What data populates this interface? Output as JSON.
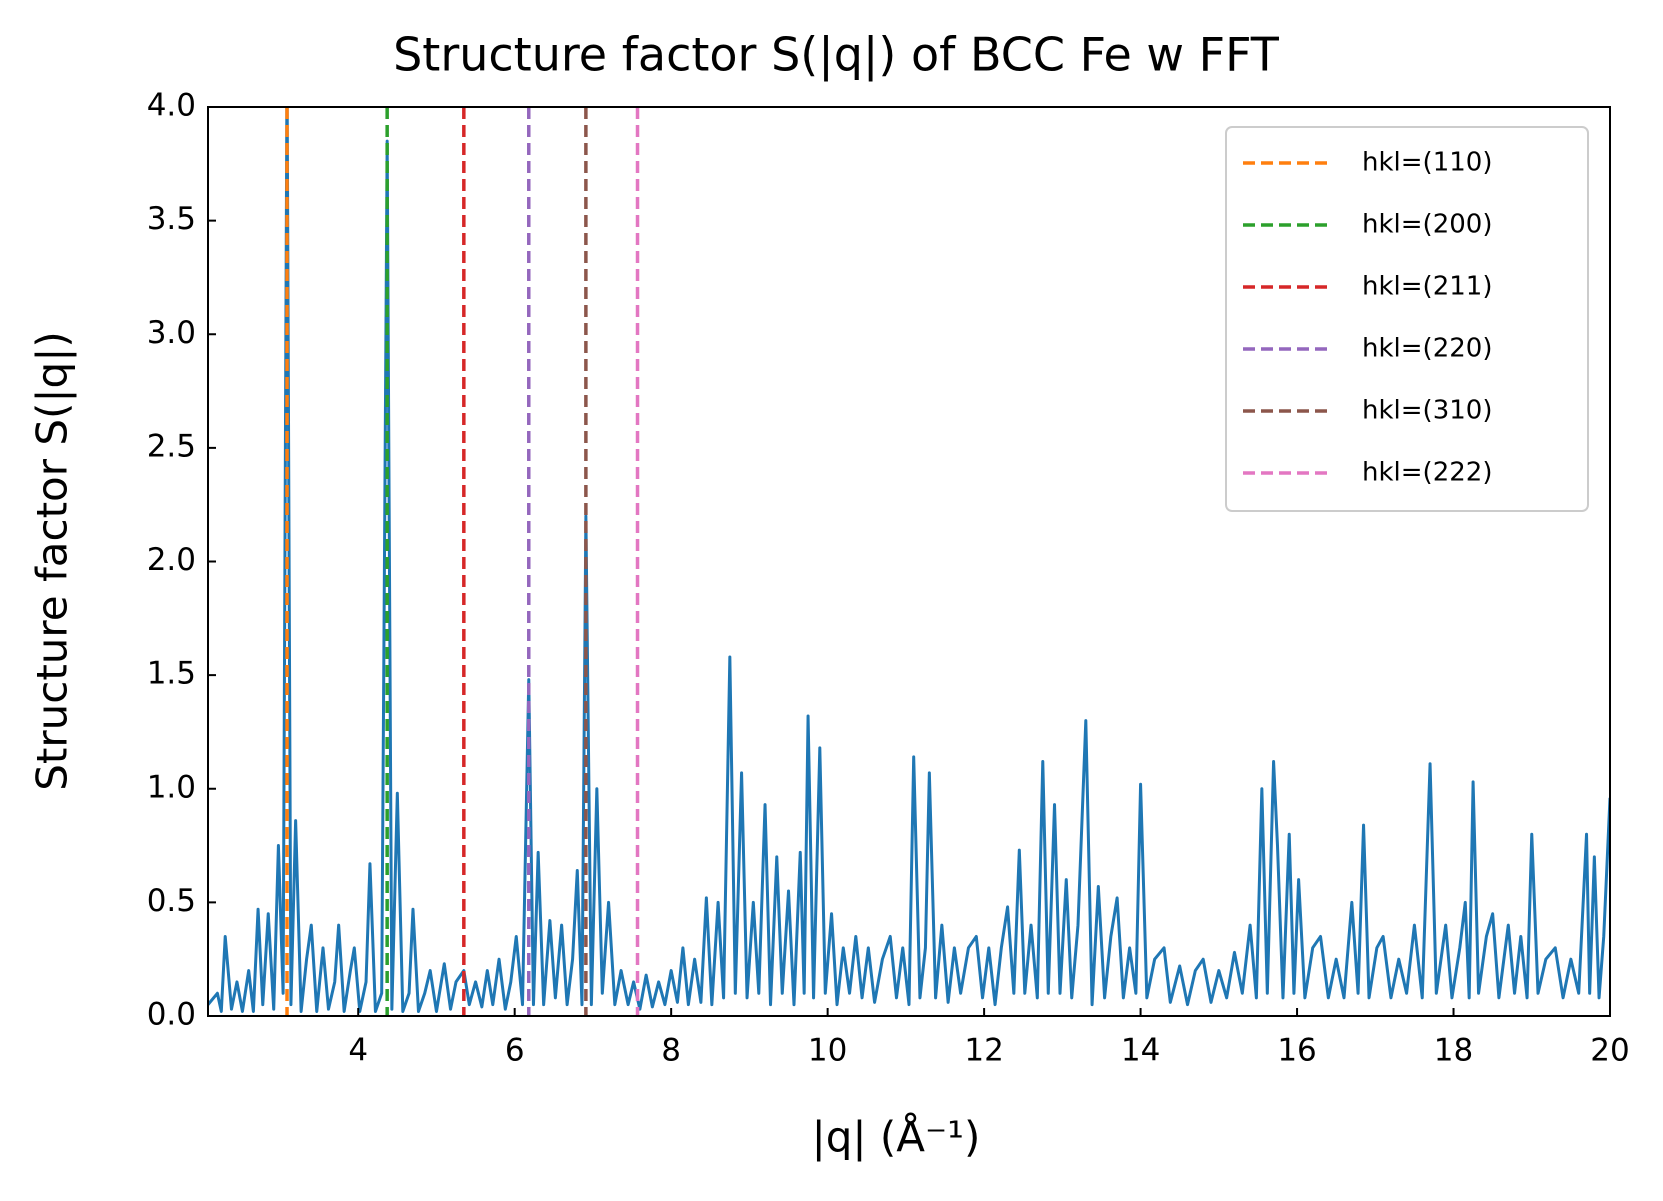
{
  "chart_data": {
    "type": "line",
    "title": "Structure factor S(|q|) of BCC Fe w FFT",
    "x_label": "|q| (Å⁻¹)",
    "y_label": "Structure factor S(|q|)",
    "color": "#1f77b4",
    "xlim": [
      2.08,
      20
    ],
    "ylim": [
      0,
      4
    ],
    "xticks": [
      4,
      6,
      8,
      10,
      12,
      14,
      16,
      18,
      20
    ],
    "yticks": [
      {
        "value": 0,
        "label": "0.0"
      },
      0.5,
      {
        "value": 1,
        "label": "1.0"
      },
      1.5,
      {
        "value": 2,
        "label": "2.0"
      },
      2.5,
      {
        "value": 3,
        "label": "3.0"
      },
      3.5,
      {
        "value": 4,
        "label": "4.0"
      }
    ],
    "legend": "upper right",
    "vlines": [
      {
        "name": "hkl=(110)",
        "color": "#ff7f0e",
        "x": 3.09
      },
      {
        "name": "hkl=(200)",
        "color": "#2ca02c",
        "x": 4.37
      },
      {
        "name": "hkl=(211)",
        "color": "#d62728",
        "x": 5.35
      },
      {
        "name": "hkl=(220)",
        "color": "#9467bd",
        "x": 6.18
      },
      {
        "name": "hkl=(310)",
        "color": "#8c564b",
        "x": 6.91
      },
      {
        "name": "hkl=(222)",
        "color": "#e377c2",
        "x": 7.57
      }
    ],
    "x": [
      2.08,
      2.2,
      2.25,
      2.3,
      2.38,
      2.45,
      2.52,
      2.6,
      2.66,
      2.72,
      2.78,
      2.85,
      2.92,
      2.98,
      3.04,
      3.09,
      3.14,
      3.2,
      3.27,
      3.34,
      3.4,
      3.47,
      3.55,
      3.62,
      3.7,
      3.75,
      3.82,
      3.9,
      3.95,
      4.02,
      4.1,
      4.15,
      4.22,
      4.3,
      4.37,
      4.43,
      4.5,
      4.57,
      4.65,
      4.7,
      4.77,
      4.85,
      4.92,
      5.0,
      5.1,
      5.18,
      5.25,
      5.35,
      5.42,
      5.5,
      5.58,
      5.65,
      5.72,
      5.8,
      5.88,
      5.95,
      6.02,
      6.1,
      6.18,
      6.24,
      6.3,
      6.37,
      6.45,
      6.52,
      6.6,
      6.67,
      6.74,
      6.8,
      6.86,
      6.91,
      6.98,
      7.05,
      7.12,
      7.2,
      7.28,
      7.36,
      7.45,
      7.52,
      7.6,
      7.68,
      7.76,
      7.84,
      7.92,
      8.0,
      8.08,
      8.15,
      8.22,
      8.3,
      8.38,
      8.45,
      8.52,
      8.6,
      8.67,
      8.75,
      8.82,
      8.9,
      8.97,
      9.05,
      9.12,
      9.2,
      9.27,
      9.35,
      9.42,
      9.5,
      9.57,
      9.65,
      9.7,
      9.75,
      9.82,
      9.9,
      9.97,
      10.05,
      10.12,
      10.2,
      10.28,
      10.36,
      10.44,
      10.52,
      10.6,
      10.7,
      10.8,
      10.88,
      10.96,
      11.04,
      11.1,
      11.18,
      11.25,
      11.3,
      11.38,
      11.46,
      11.54,
      11.62,
      11.7,
      11.8,
      11.9,
      11.98,
      12.06,
      12.14,
      12.22,
      12.3,
      12.38,
      12.45,
      12.52,
      12.6,
      12.68,
      12.75,
      12.82,
      12.9,
      12.97,
      13.05,
      13.12,
      13.2,
      13.3,
      13.38,
      13.46,
      13.54,
      13.62,
      13.7,
      13.78,
      13.86,
      13.94,
      14.0,
      14.08,
      14.18,
      14.3,
      14.38,
      14.5,
      14.6,
      14.7,
      14.8,
      14.9,
      15.0,
      15.1,
      15.2,
      15.3,
      15.4,
      15.48,
      15.55,
      15.62,
      15.7,
      15.75,
      15.82,
      15.9,
      15.96,
      16.02,
      16.1,
      16.2,
      16.3,
      16.4,
      16.5,
      16.6,
      16.7,
      16.78,
      16.85,
      16.92,
      17.02,
      17.1,
      17.2,
      17.3,
      17.4,
      17.5,
      17.6,
      17.7,
      17.78,
      17.9,
      17.98,
      18.08,
      18.15,
      18.2,
      18.25,
      18.32,
      18.42,
      18.5,
      18.58,
      18.7,
      18.78,
      18.86,
      18.94,
      19.0,
      19.08,
      19.18,
      19.3,
      19.4,
      19.5,
      19.6,
      19.7,
      19.74,
      19.8,
      19.86,
      19.92,
      20.0
    ],
    "values": [
      0.05,
      0.1,
      0.02,
      0.35,
      0.03,
      0.15,
      0.02,
      0.2,
      0.02,
      0.47,
      0.05,
      0.45,
      0.03,
      0.75,
      0.1,
      4.2,
      0.05,
      0.86,
      0.02,
      0.25,
      0.4,
      0.02,
      0.3,
      0.03,
      0.15,
      0.4,
      0.02,
      0.2,
      0.3,
      0.02,
      0.15,
      0.67,
      0.02,
      0.1,
      3.85,
      0.03,
      0.98,
      0.02,
      0.1,
      0.47,
      0.02,
      0.1,
      0.2,
      0.02,
      0.23,
      0.03,
      0.15,
      0.2,
      0.05,
      0.15,
      0.04,
      0.2,
      0.05,
      0.25,
      0.03,
      0.15,
      0.35,
      0.05,
      1.48,
      0.05,
      0.72,
      0.05,
      0.42,
      0.08,
      0.4,
      0.05,
      0.25,
      0.64,
      0.05,
      2.2,
      0.05,
      1.0,
      0.1,
      0.5,
      0.05,
      0.2,
      0.05,
      0.15,
      0.03,
      0.18,
      0.04,
      0.15,
      0.05,
      0.2,
      0.06,
      0.3,
      0.05,
      0.25,
      0.06,
      0.52,
      0.05,
      0.5,
      0.08,
      1.58,
      0.1,
      1.07,
      0.08,
      0.5,
      0.1,
      0.93,
      0.05,
      0.7,
      0.1,
      0.55,
      0.05,
      0.72,
      0.1,
      1.32,
      0.08,
      1.18,
      0.1,
      0.45,
      0.05,
      0.3,
      0.1,
      0.35,
      0.08,
      0.3,
      0.06,
      0.25,
      0.35,
      0.08,
      0.3,
      0.05,
      1.14,
      0.08,
      0.3,
      1.07,
      0.08,
      0.4,
      0.06,
      0.3,
      0.1,
      0.3,
      0.35,
      0.08,
      0.3,
      0.05,
      0.3,
      0.48,
      0.1,
      0.73,
      0.1,
      0.4,
      0.08,
      1.12,
      0.1,
      0.93,
      0.1,
      0.6,
      0.08,
      0.4,
      1.3,
      0.05,
      0.57,
      0.08,
      0.35,
      0.52,
      0.08,
      0.3,
      0.1,
      1.02,
      0.08,
      0.25,
      0.3,
      0.06,
      0.22,
      0.05,
      0.2,
      0.25,
      0.06,
      0.2,
      0.08,
      0.28,
      0.1,
      0.4,
      0.08,
      1.0,
      0.1,
      1.12,
      0.75,
      0.08,
      0.8,
      0.1,
      0.6,
      0.08,
      0.3,
      0.35,
      0.08,
      0.25,
      0.08,
      0.5,
      0.1,
      0.84,
      0.08,
      0.3,
      0.35,
      0.08,
      0.25,
      0.1,
      0.4,
      0.08,
      1.11,
      0.1,
      0.4,
      0.08,
      0.3,
      0.5,
      0.08,
      1.03,
      0.1,
      0.35,
      0.45,
      0.08,
      0.4,
      0.1,
      0.35,
      0.08,
      0.8,
      0.1,
      0.25,
      0.3,
      0.08,
      0.25,
      0.1,
      0.8,
      0.1,
      0.7,
      0.08,
      0.35,
      0.96
    ]
  }
}
